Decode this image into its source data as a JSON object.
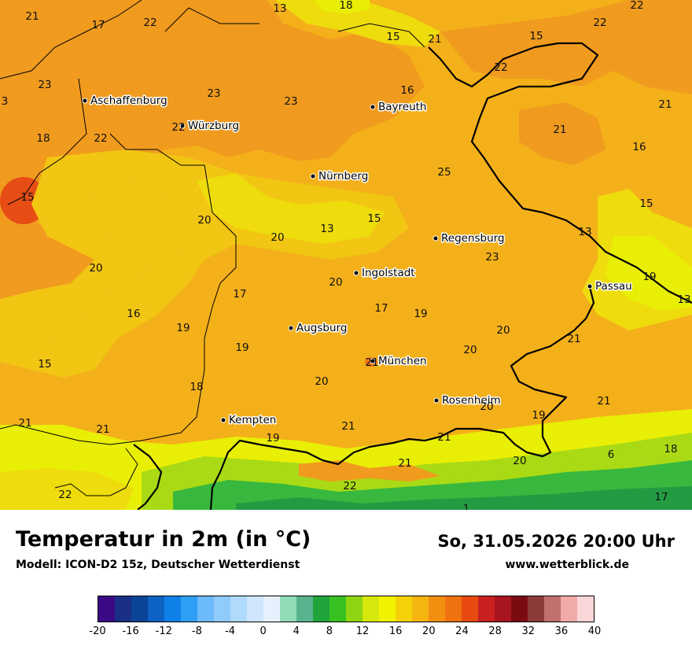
{
  "header": {
    "title": "Temperatur in 2m (in °C)",
    "model": "Modell: ICON-D2 15z, Deutscher Wetterdienst",
    "datetime": "So, 31.05.2026 20:00 Uhr",
    "website": "www.wetterblick.de"
  },
  "colors": {
    "orange_warm": "#f29a1a",
    "orange": "#f5b015",
    "yellow_orange": "#f3c60e",
    "yellow": "#f0dd08",
    "light_yellow": "#eaf000",
    "hot_red": "#e84a10",
    "green_light": "#a9db10",
    "green": "#34b83a",
    "green_dark": "#1f9a3e",
    "border": "#000000"
  },
  "cities": [
    {
      "name": "Aschaffenburg"
    },
    {
      "name": "Würzburg"
    },
    {
      "name": "Bayreuth"
    },
    {
      "name": "Nürnberg"
    },
    {
      "name": "Regensburg"
    },
    {
      "name": "Ingolstadt"
    },
    {
      "name": "Passau"
    },
    {
      "name": "Augsburg"
    },
    {
      "name": "München"
    },
    {
      "name": "Rosenheim"
    },
    {
      "name": "Kempten"
    }
  ],
  "temperatures": [
    "21",
    "17",
    "22",
    "13",
    "18",
    "22",
    "15",
    "21",
    "15",
    "22",
    "23",
    "23",
    "23",
    "16",
    "3",
    "21",
    "22",
    "18",
    "22",
    "22",
    "16",
    "21",
    "25",
    "15",
    "20",
    "15",
    "15",
    "13",
    "20",
    "23",
    "20",
    "13",
    "19",
    "13",
    "16",
    "20",
    "17",
    "19",
    "17",
    "20",
    "19",
    "19",
    "15",
    "21",
    "18",
    "20",
    "20",
    "21",
    "21",
    "19",
    "21",
    "21",
    "6",
    "21",
    "18",
    "20",
    "22",
    "22",
    "17",
    "1"
  ],
  "legend": {
    "colors": [
      "#3a0a86",
      "#1a2f86",
      "#0b4597",
      "#0d62c3",
      "#0f81e8",
      "#2f9ff6",
      "#6cbaf9",
      "#8fcbfb",
      "#b0dafc",
      "#cfe6fd",
      "#e7f1fe",
      "#8fdcb5",
      "#5ab38f",
      "#1fa43c",
      "#37c121",
      "#8fd410",
      "#d4e90b",
      "#f1f200",
      "#f4d20a",
      "#f5b511",
      "#f28e10",
      "#f07110",
      "#e84a10",
      "#c82020",
      "#a8151e",
      "#7a0c11",
      "#8b3a3a",
      "#c0706f",
      "#f0aaa8",
      "#fbd6d8"
    ],
    "ticks": [
      "-20",
      "-16",
      "-12",
      "-8",
      "-4",
      "0",
      "4",
      "8",
      "12",
      "16",
      "20",
      "24",
      "28",
      "32",
      "36",
      "40"
    ]
  }
}
